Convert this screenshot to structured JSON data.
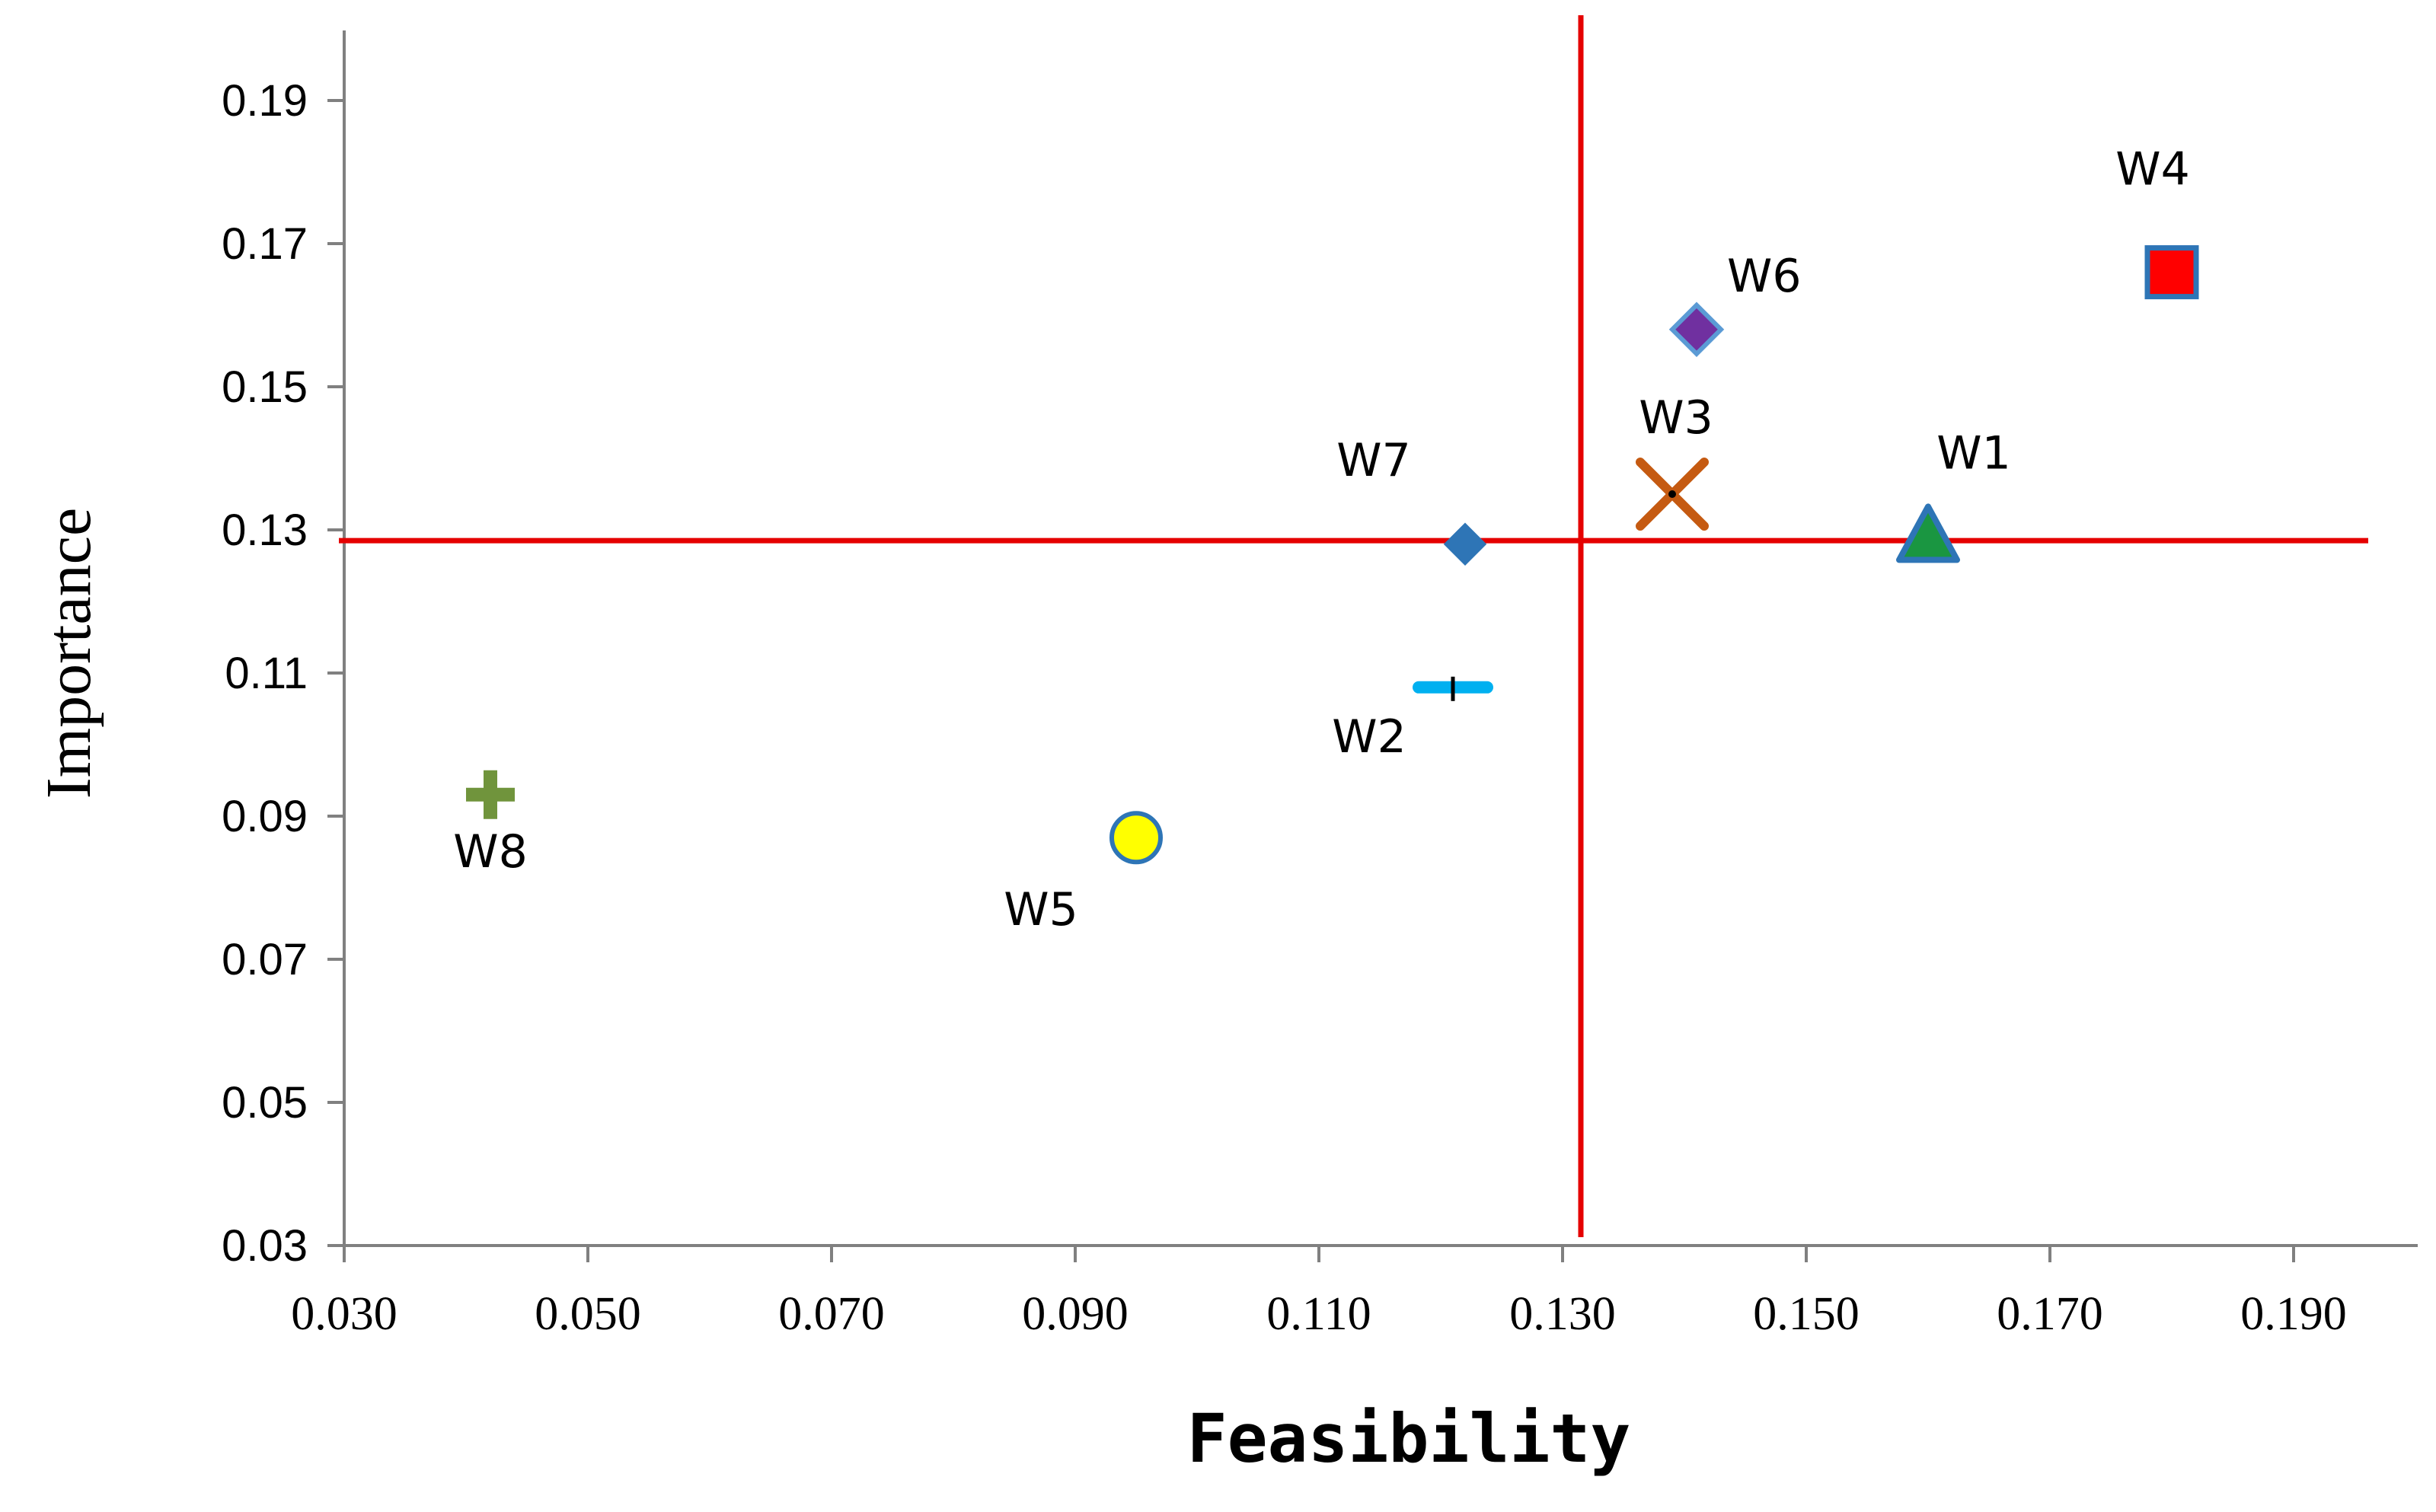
{
  "chart_data": {
    "type": "scatter",
    "title": "",
    "xlabel": "Feasibility",
    "ylabel": "Importance",
    "xlim": [
      0.03,
      0.2
    ],
    "ylim": [
      0.03,
      0.2
    ],
    "xticks": [
      "0.030",
      "0.050",
      "0.070",
      "0.090",
      "0.110",
      "0.130",
      "0.150",
      "0.170",
      "0.190"
    ],
    "yticks": [
      "0.03",
      "0.05",
      "0.07",
      "0.09",
      "0.11",
      "0.13",
      "0.15",
      "0.17",
      "0.19"
    ],
    "grid": false,
    "points": [
      {
        "name": "W1",
        "x": 0.16,
        "y": 0.129,
        "marker": "triangle",
        "color": "#1a9641",
        "edge": "#2e75b6"
      },
      {
        "name": "W2",
        "x": 0.121,
        "y": 0.108,
        "marker": "dash",
        "color": "#00b0f0",
        "edge": "#000000"
      },
      {
        "name": "W3",
        "x": 0.139,
        "y": 0.135,
        "marker": "x",
        "color": "#c55a11",
        "edge": "#000000"
      },
      {
        "name": "W4",
        "x": 0.18,
        "y": 0.166,
        "marker": "square",
        "color": "#ff0000",
        "edge": "#2e75b6"
      },
      {
        "name": "W5",
        "x": 0.095,
        "y": 0.087,
        "marker": "circle",
        "color": "#ffff00",
        "edge": "#2e75b6"
      },
      {
        "name": "W6",
        "x": 0.141,
        "y": 0.158,
        "marker": "diamond",
        "color": "#7030a0",
        "edge": "#5b9bd5"
      },
      {
        "name": "W7",
        "x": 0.122,
        "y": 0.128,
        "marker": "diamond",
        "color": "#2e75b6",
        "edge": "#2e75b6"
      },
      {
        "name": "W8",
        "x": 0.042,
        "y": 0.093,
        "marker": "plus",
        "color": "#70943c",
        "edge": "#70943c"
      }
    ],
    "reference_lines": {
      "x": 0.1315,
      "y": 0.1285,
      "color": "#e50000"
    }
  }
}
